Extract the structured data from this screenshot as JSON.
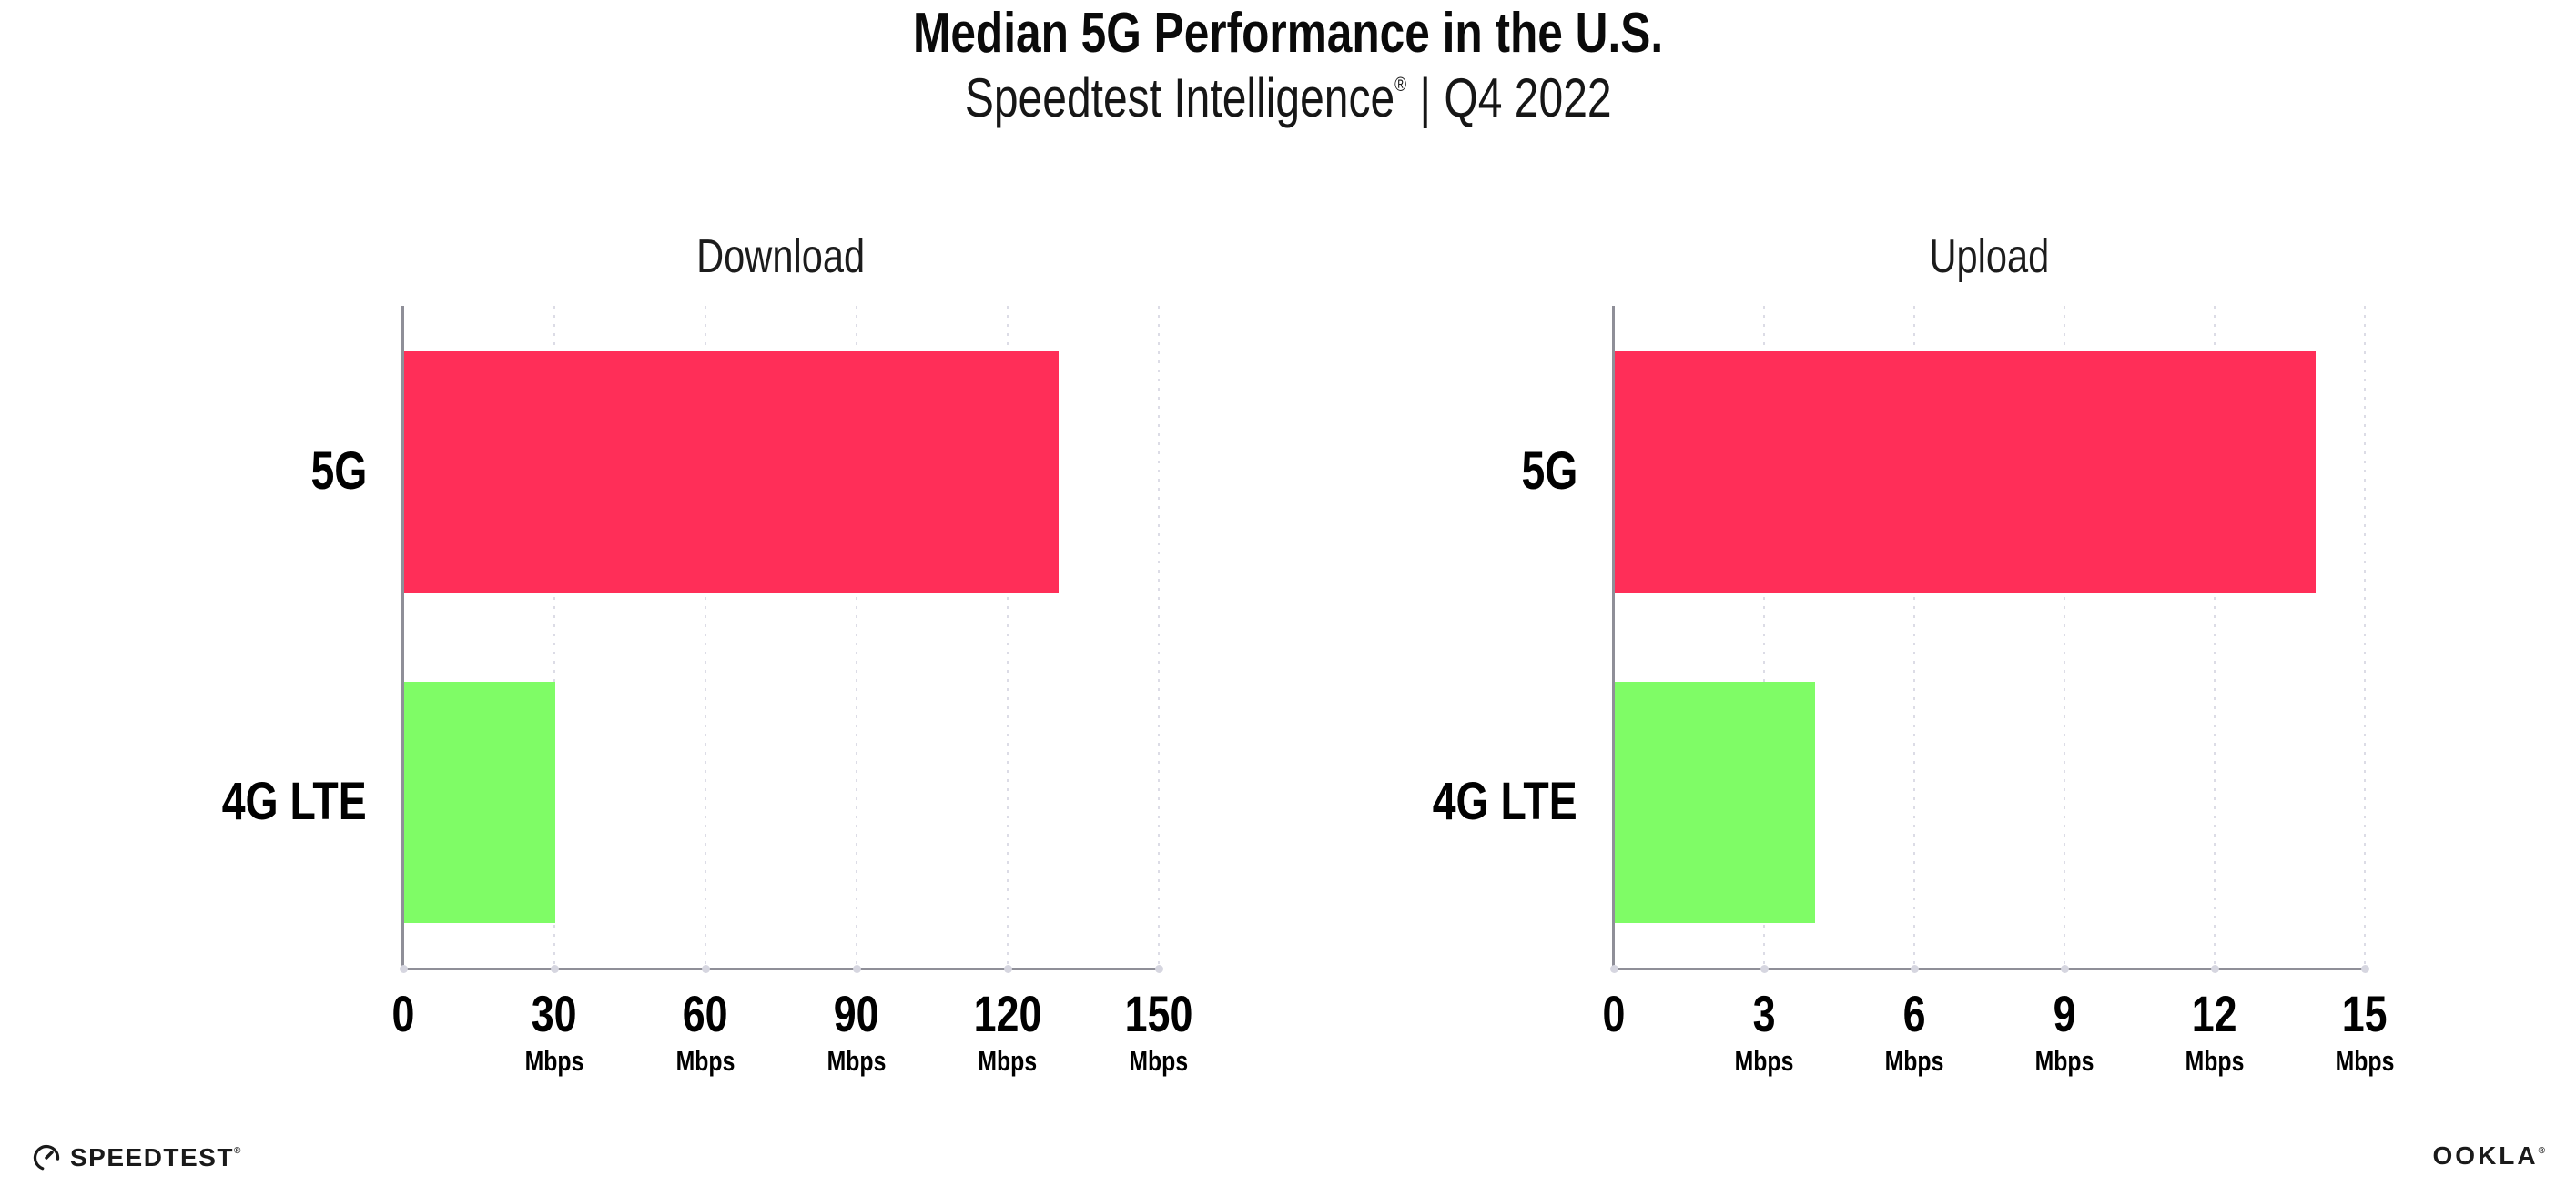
{
  "header": {
    "title": "Median 5G Performance in the U.S.",
    "subtitle_brand": "Speedtest Intelligence",
    "subtitle_reg": "®",
    "subtitle_divider": "|",
    "subtitle_period": "Q4 2022"
  },
  "chart_data": [
    {
      "type": "bar",
      "orientation": "horizontal",
      "title": "Download",
      "categories": [
        "5G",
        "4G LTE"
      ],
      "values": [
        130,
        30
      ],
      "unit": "Mbps",
      "xlim": [
        0,
        150
      ],
      "xticks": [
        0,
        30,
        60,
        90,
        120,
        150
      ],
      "bar_colors": [
        "#FF2E58",
        "#7FFC66"
      ],
      "grid": "vertical-dotted",
      "legend": "none"
    },
    {
      "type": "bar",
      "orientation": "horizontal",
      "title": "Upload",
      "categories": [
        "5G",
        "4G LTE"
      ],
      "values": [
        14,
        4
      ],
      "unit": "Mbps",
      "xlim": [
        0,
        15
      ],
      "xticks": [
        0,
        3,
        6,
        9,
        12,
        15
      ],
      "bar_colors": [
        "#FF2E58",
        "#7FFC66"
      ],
      "grid": "vertical-dotted",
      "legend": "none"
    }
  ],
  "colors": {
    "bar_5g": "#FF2E58",
    "bar_4g_lte": "#7FFC66",
    "axis": "#8f8f98",
    "gridline": "#dcdce6",
    "tick_dot": "#d6d6e0",
    "text": "#000000"
  },
  "footer": {
    "speedtest_logo_text": "SPEEDTEST",
    "speedtest_reg": "®",
    "ookla_logo_text": "OOKLA",
    "ookla_reg": "®"
  }
}
